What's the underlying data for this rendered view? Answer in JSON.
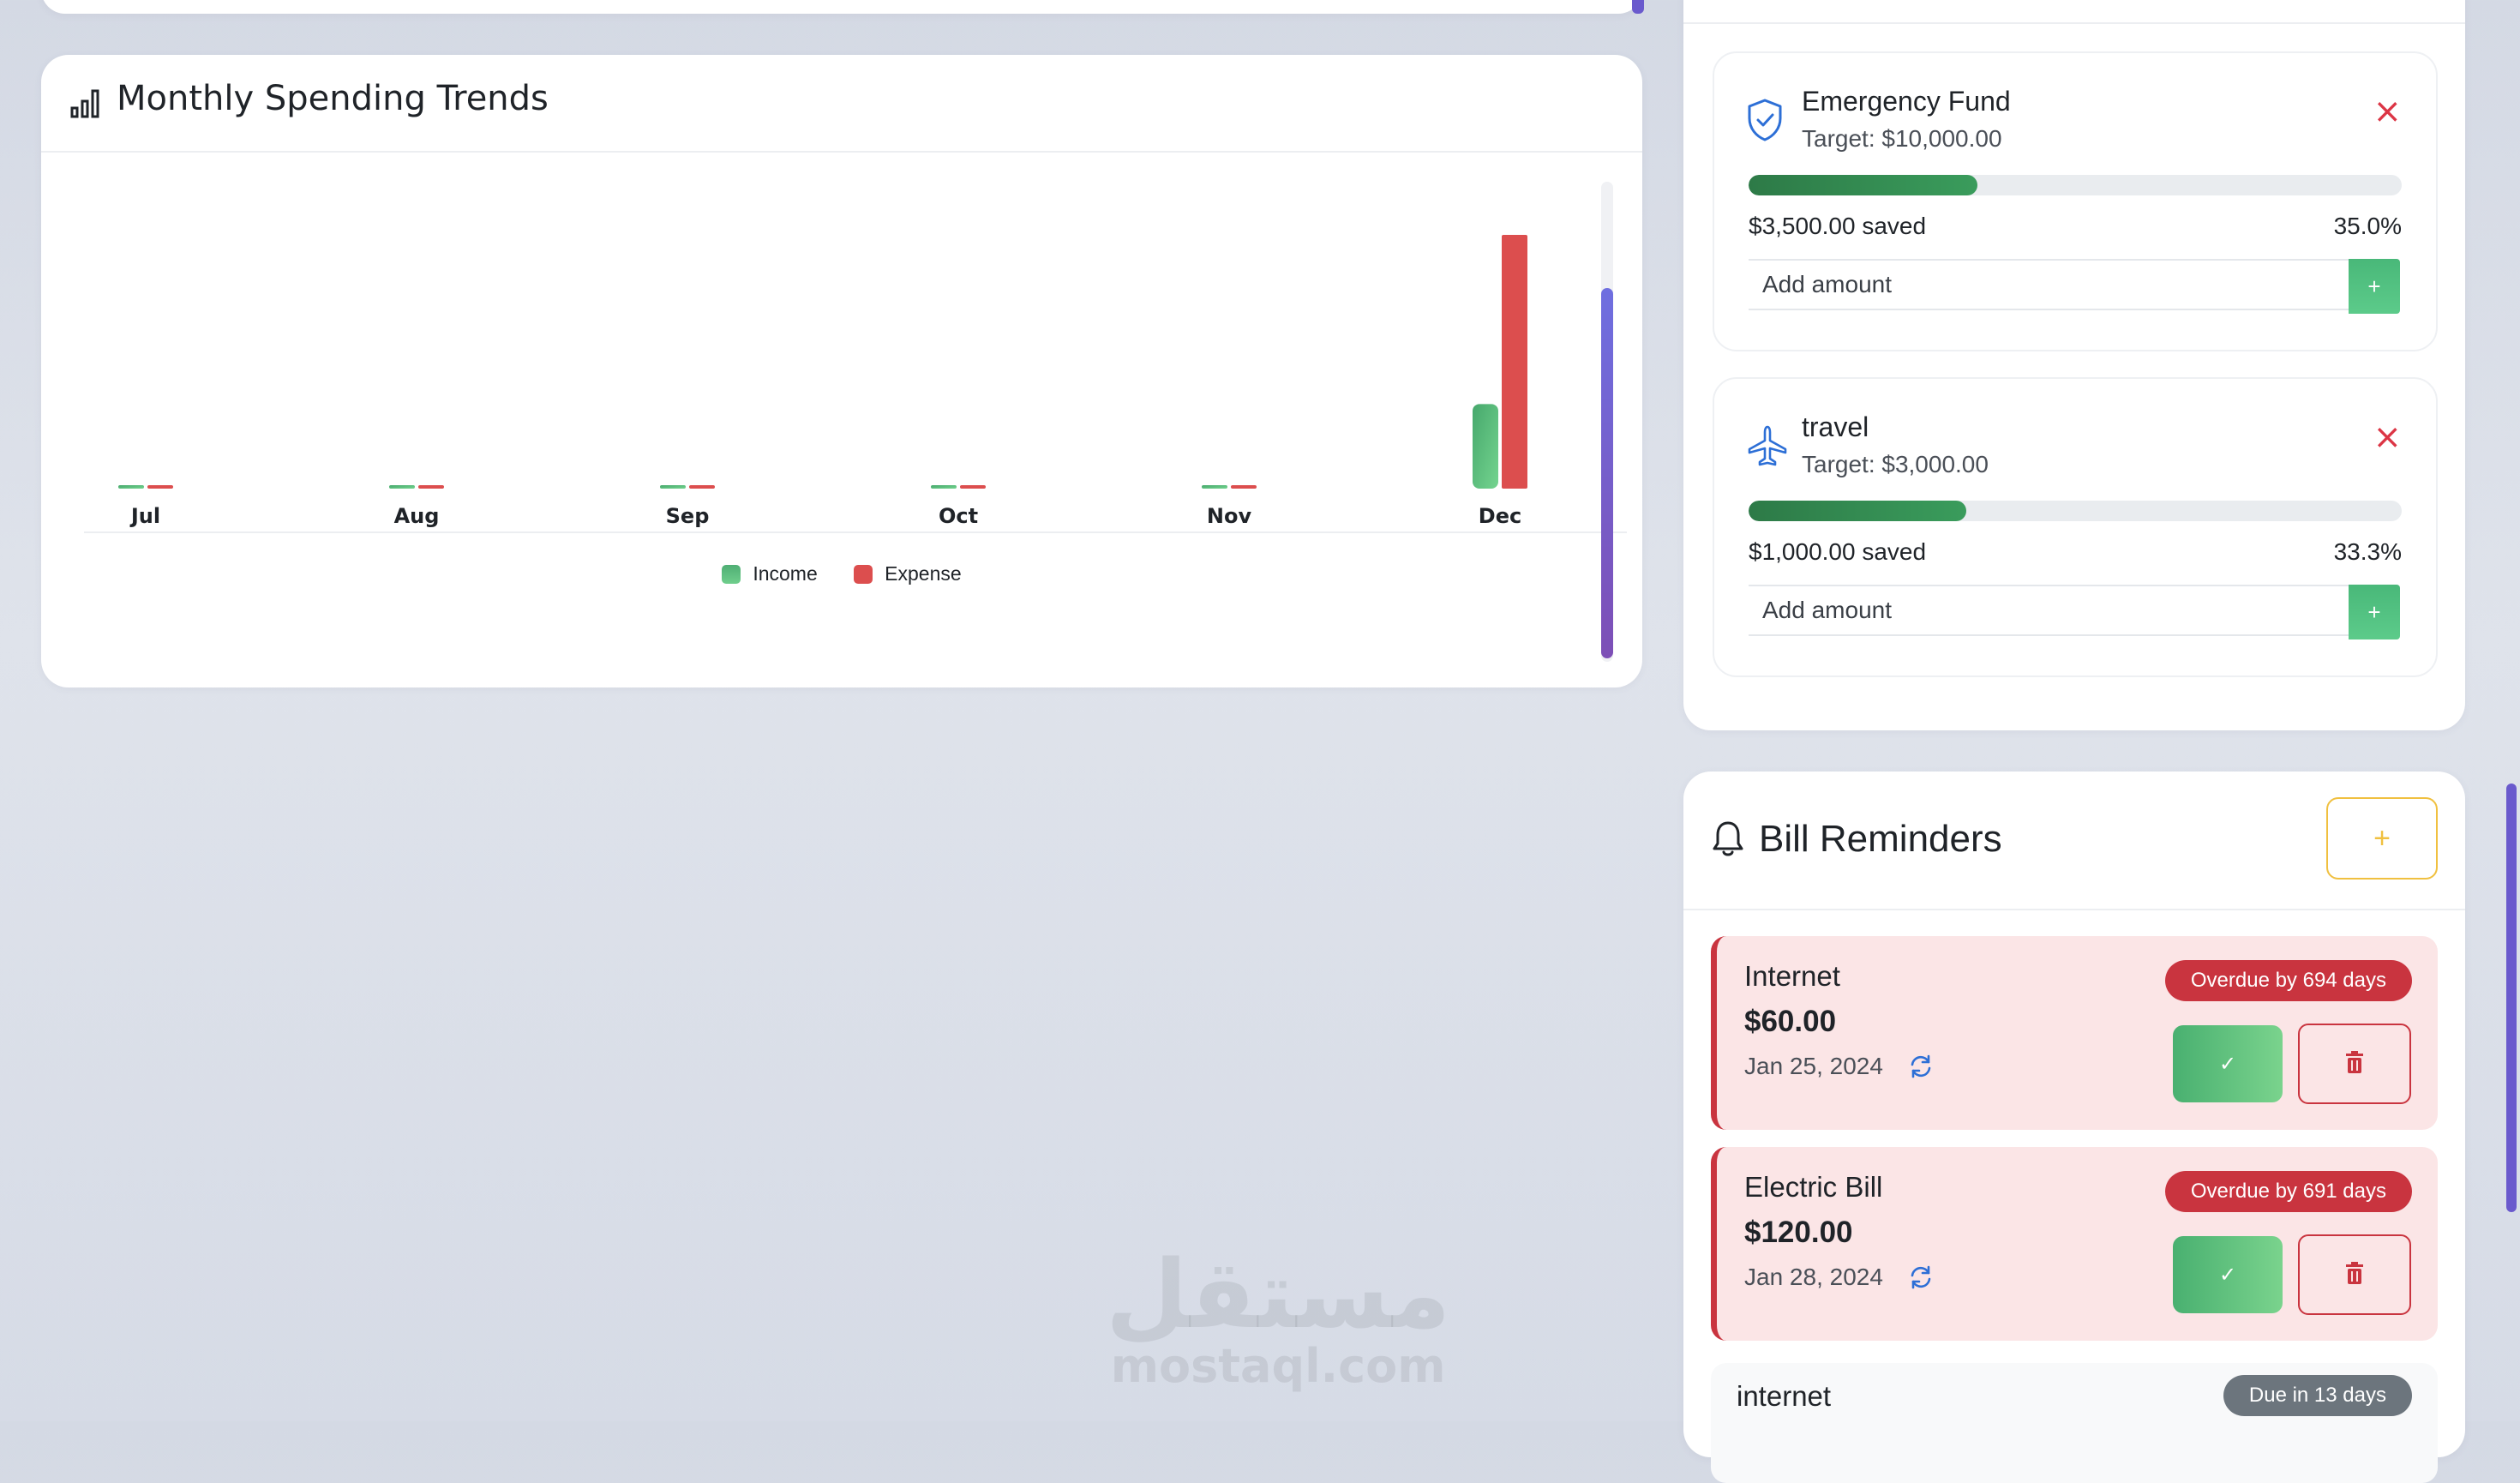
{
  "chart_card": {
    "title": "Monthly Spending Trends",
    "icon": "bar-chart-icon"
  },
  "chart_data": {
    "type": "bar",
    "categories": [
      "Jul",
      "Aug",
      "Sep",
      "Oct",
      "Nov",
      "Dec"
    ],
    "series": [
      {
        "name": "Income",
        "values": [
          0,
          0,
          0,
          0,
          0,
          1000
        ],
        "color": "#5cbf7f"
      },
      {
        "name": "Expense",
        "values": [
          0,
          0,
          0,
          0,
          0,
          3000
        ],
        "color": "#dc4e4e"
      }
    ],
    "ylim": [
      0,
      3000
    ],
    "legend_position": "bottom"
  },
  "goals": [
    {
      "name": "Emergency Fund",
      "target": "Target: $10,000.00",
      "saved": "$3,500.00 saved",
      "percent": "35.0%",
      "fill": 0.35,
      "placeholder": "Add amount",
      "icon": "shield-icon",
      "close_label": "×",
      "add_label": "+"
    },
    {
      "name": "travel",
      "target": "Target: $3,000.00",
      "saved": "$1,000.00 saved",
      "percent": "33.3%",
      "fill": 0.333,
      "placeholder": "Add amount",
      "icon": "airplane-icon",
      "close_label": "×",
      "add_label": "+"
    }
  ],
  "bills": {
    "title": "Bill Reminders",
    "icon": "bell-icon",
    "add_label": "+",
    "items": [
      {
        "name": "Internet",
        "amount": "$60.00",
        "date": "Jan 25, 2024",
        "status": "Overdue by 694 days",
        "pay_label": "✓"
      },
      {
        "name": "Electric Bill",
        "amount": "$120.00",
        "date": "Jan 28, 2024",
        "status": "Overdue by 691 days",
        "pay_label": "✓"
      },
      {
        "name": "internet",
        "status": "Due in 13 days"
      }
    ]
  },
  "watermark": {
    "arabic": "مستقل",
    "latin": "mostaql.com"
  },
  "colors": {
    "accent": "#6a5acd",
    "income": "#5cbf7f",
    "expense": "#dc4e4e",
    "overdue": "#c9343f",
    "warning": "#f0c040"
  }
}
